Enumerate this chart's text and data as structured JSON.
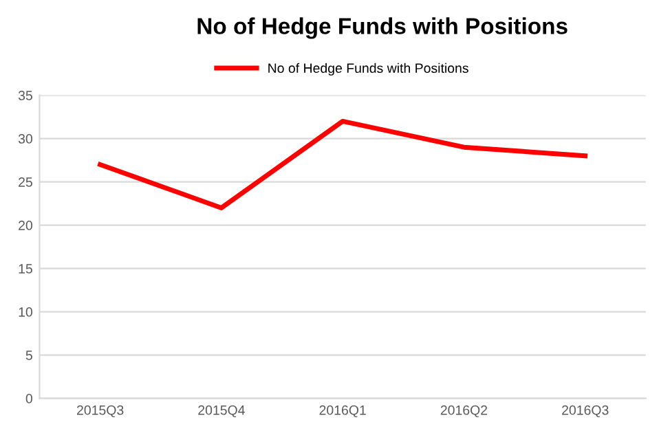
{
  "chart_data": {
    "type": "line",
    "title": "No of Hedge Funds with Positions",
    "categories": [
      "2015Q3",
      "2015Q4",
      "2016Q1",
      "2016Q2",
      "2016Q3"
    ],
    "series": [
      {
        "name": "No of Hedge Funds with Positions",
        "color": "#ff0000",
        "values": [
          27,
          22,
          32,
          29,
          28
        ]
      }
    ],
    "ylim": [
      0,
      35
    ],
    "yticks": [
      0,
      5,
      10,
      15,
      20,
      25,
      30,
      35
    ],
    "grid": "y",
    "legend": "top",
    "marker": "none",
    "line_style": "solid"
  }
}
